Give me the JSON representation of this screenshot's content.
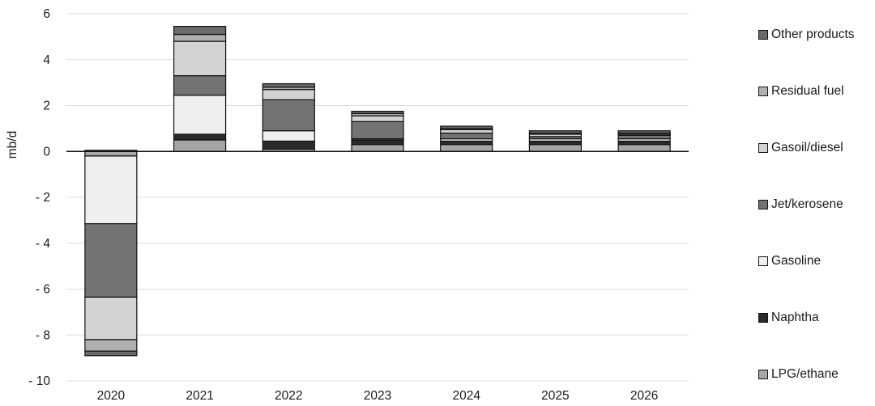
{
  "chart_data": {
    "type": "bar",
    "stacked": true,
    "ylabel": "mb/d",
    "ylim": [
      -10,
      6
    ],
    "yticks": [
      6,
      4,
      2,
      0,
      -2,
      -4,
      -6,
      -8,
      -10
    ],
    "ytick_labels": [
      "6",
      "4",
      "2",
      "0",
      "- 2",
      "- 4",
      "- 6",
      "- 8",
      "- 10"
    ],
    "grid": true,
    "legend_position": "right",
    "categories": [
      "2020",
      "2021",
      "2022",
      "2023",
      "2024",
      "2025",
      "2026"
    ],
    "series": [
      {
        "name": "LPG/ethane",
        "color": "#a6a6a6",
        "values": [
          -0.2,
          0.5,
          0.1,
          0.3,
          0.3,
          0.3,
          0.3
        ]
      },
      {
        "name": "Naphtha",
        "color": "#2b2b2b",
        "values": [
          0.0,
          0.25,
          0.35,
          0.2,
          0.15,
          0.15,
          0.15
        ]
      },
      {
        "name": "Gasoline",
        "color": "#efefef",
        "values": [
          -2.95,
          1.7,
          0.45,
          0.05,
          0.1,
          0.1,
          0.1
        ]
      },
      {
        "name": "Jet/kerosene",
        "color": "#737373",
        "values": [
          -3.2,
          0.85,
          1.35,
          0.75,
          0.25,
          0.1,
          0.15
        ]
      },
      {
        "name": "Gasoil/diesel",
        "color": "#d3d3d3",
        "values": [
          -1.85,
          1.5,
          0.45,
          0.25,
          0.15,
          0.1,
          0.05
        ]
      },
      {
        "name": "Residual fuel",
        "color": "#b0b0b0",
        "values": [
          -0.5,
          0.3,
          0.1,
          0.1,
          0.05,
          0.05,
          0.05
        ]
      },
      {
        "name": "Other products",
        "color": "#6a6a6a",
        "values": [
          0.05,
          0.35,
          0.15,
          0.1,
          0.1,
          0.1,
          0.1
        ]
      }
    ],
    "series_extra": {
      "2020_other_negative": -0.2
    }
  }
}
